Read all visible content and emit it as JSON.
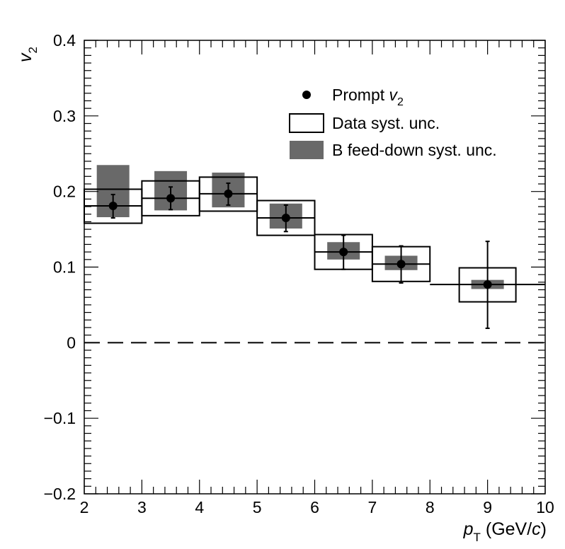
{
  "chart_data": {
    "type": "scatter",
    "title": "",
    "xlabel": {
      "main": "p",
      "sub": "T",
      "unit_open": " (GeV/",
      "unit_var": "c",
      "unit_close": ")"
    },
    "ylabel": {
      "main": "v",
      "sub": "2"
    },
    "xlim": [
      2,
      10
    ],
    "ylim": [
      -0.2,
      0.4
    ],
    "x_ticks": [
      2,
      3,
      4,
      5,
      6,
      7,
      8,
      9,
      10
    ],
    "x_tick_labels": [
      "2",
      "3",
      "4",
      "5",
      "6",
      "7",
      "8",
      "9",
      "10"
    ],
    "y_ticks": [
      -0.2,
      -0.1,
      0,
      0.1,
      0.2,
      0.3,
      0.4
    ],
    "y_tick_labels": [
      "−0.2",
      "−0.1",
      "0",
      "0.1",
      "0.2",
      "0.3",
      "0.4"
    ],
    "grid": false,
    "reference_line": {
      "y": 0,
      "style": "dashed"
    },
    "legend": {
      "position": "top-right",
      "entries": [
        {
          "key": "prompt",
          "label_main": "Prompt ",
          "label_var": "v",
          "label_sub": "2",
          "style": "marker"
        },
        {
          "key": "data_syst",
          "label": "Data syst. unc.",
          "style": "open-box"
        },
        {
          "key": "bfeed_syst",
          "label": "B feed-down syst. unc.",
          "style": "filled-box"
        }
      ]
    },
    "colors": {
      "marker": "#000000",
      "data_box": "#000000",
      "bfeed_box": "#696969",
      "axis": "#000000"
    },
    "series": [
      {
        "name": "Prompt v2",
        "points": [
          {
            "x": 2.5,
            "y": 0.181,
            "stat_low": 0.165,
            "stat_high": 0.196,
            "data_low": 0.158,
            "data_high": 0.203,
            "bfeed_low": 0.166,
            "bfeed_high": 0.235,
            "xmin": 2,
            "xmax": 3
          },
          {
            "x": 3.5,
            "y": 0.191,
            "stat_low": 0.176,
            "stat_high": 0.206,
            "data_low": 0.168,
            "data_high": 0.214,
            "bfeed_low": 0.175,
            "bfeed_high": 0.227,
            "xmin": 3,
            "xmax": 4
          },
          {
            "x": 4.5,
            "y": 0.197,
            "stat_low": 0.182,
            "stat_high": 0.211,
            "data_low": 0.174,
            "data_high": 0.219,
            "bfeed_low": 0.179,
            "bfeed_high": 0.225,
            "xmin": 4,
            "xmax": 5
          },
          {
            "x": 5.5,
            "y": 0.165,
            "stat_low": 0.147,
            "stat_high": 0.182,
            "data_low": 0.142,
            "data_high": 0.188,
            "bfeed_low": 0.151,
            "bfeed_high": 0.184,
            "xmin": 5,
            "xmax": 6
          },
          {
            "x": 6.5,
            "y": 0.12,
            "stat_low": 0.097,
            "stat_high": 0.142,
            "data_low": 0.097,
            "data_high": 0.143,
            "bfeed_low": 0.11,
            "bfeed_high": 0.133,
            "xmin": 6,
            "xmax": 7
          },
          {
            "x": 7.5,
            "y": 0.104,
            "stat_low": 0.079,
            "stat_high": 0.128,
            "data_low": 0.081,
            "data_high": 0.127,
            "bfeed_low": 0.096,
            "bfeed_high": 0.115,
            "xmin": 7,
            "xmax": 8
          },
          {
            "x": 9.0,
            "y": 0.077,
            "stat_low": 0.019,
            "stat_high": 0.134,
            "data_low": 0.054,
            "data_high": 0.099,
            "bfeed_low": 0.071,
            "bfeed_high": 0.083,
            "xmin": 8,
            "xmax": 10
          }
        ]
      }
    ]
  }
}
